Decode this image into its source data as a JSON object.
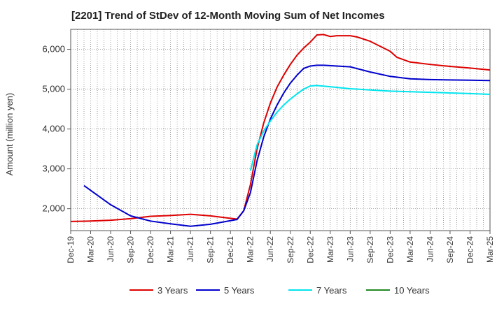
{
  "chart_data": {
    "type": "line",
    "title": "[2201]  Trend of StDev of 12-Month Moving Sum of Net Incomes",
    "xlabel": "",
    "ylabel": "Amount (million yen)",
    "ylim": [
      1450,
      6500
    ],
    "yticks": [
      2000,
      3000,
      4000,
      5000,
      6000
    ],
    "ytick_labels": [
      "2,000",
      "3,000",
      "4,000",
      "5,000",
      "6,000"
    ],
    "x_start": "2019-12",
    "x_end": "2025-03",
    "xtick_labels": [
      "Dec-19",
      "Mar-20",
      "Jun-20",
      "Sep-20",
      "Dec-20",
      "Mar-21",
      "Jun-21",
      "Sep-21",
      "Dec-21",
      "Mar-22",
      "Jun-22",
      "Sep-22",
      "Dec-22",
      "Mar-23",
      "Jun-23",
      "Sep-23",
      "Dec-23",
      "Mar-24",
      "Jun-24",
      "Sep-24",
      "Dec-24",
      "Mar-25"
    ],
    "grid": true,
    "legend_position": "bottom",
    "series": [
      {
        "name": "3 Years",
        "color": "#dd0000",
        "points": [
          [
            "2019-12",
            1680
          ],
          [
            "2020-03",
            1690
          ],
          [
            "2020-06",
            1710
          ],
          [
            "2020-09",
            1750
          ],
          [
            "2020-12",
            1810
          ],
          [
            "2021-03",
            1830
          ],
          [
            "2021-06",
            1860
          ],
          [
            "2021-09",
            1820
          ],
          [
            "2021-12",
            1760
          ],
          [
            "2022-01",
            1740
          ],
          [
            "2022-02",
            1950
          ],
          [
            "2022-03",
            2600
          ],
          [
            "2022-04",
            3500
          ],
          [
            "2022-05",
            4150
          ],
          [
            "2022-06",
            4650
          ],
          [
            "2022-07",
            5050
          ],
          [
            "2022-08",
            5350
          ],
          [
            "2022-09",
            5620
          ],
          [
            "2022-10",
            5850
          ],
          [
            "2022-11",
            6030
          ],
          [
            "2022-12",
            6180
          ],
          [
            "2023-01",
            6360
          ],
          [
            "2023-02",
            6370
          ],
          [
            "2023-03",
            6320
          ],
          [
            "2023-04",
            6340
          ],
          [
            "2023-06",
            6340
          ],
          [
            "2023-07",
            6310
          ],
          [
            "2023-09",
            6200
          ],
          [
            "2023-12",
            5950
          ],
          [
            "2024-01",
            5800
          ],
          [
            "2024-03",
            5680
          ],
          [
            "2024-06",
            5620
          ],
          [
            "2024-09",
            5570
          ],
          [
            "2024-12",
            5530
          ],
          [
            "2025-03",
            5480
          ]
        ]
      },
      {
        "name": "5 Years",
        "color": "#0000cc",
        "points": [
          [
            "2020-02",
            2580
          ],
          [
            "2020-06",
            2100
          ],
          [
            "2020-09",
            1820
          ],
          [
            "2020-12",
            1690
          ],
          [
            "2021-03",
            1620
          ],
          [
            "2021-06",
            1560
          ],
          [
            "2021-09",
            1610
          ],
          [
            "2021-12",
            1700
          ],
          [
            "2022-01",
            1730
          ],
          [
            "2022-02",
            1950
          ],
          [
            "2022-03",
            2400
          ],
          [
            "2022-04",
            3200
          ],
          [
            "2022-05",
            3800
          ],
          [
            "2022-06",
            4250
          ],
          [
            "2022-07",
            4600
          ],
          [
            "2022-08",
            4900
          ],
          [
            "2022-09",
            5150
          ],
          [
            "2022-10",
            5350
          ],
          [
            "2022-11",
            5520
          ],
          [
            "2022-12",
            5580
          ],
          [
            "2023-01",
            5600
          ],
          [
            "2023-02",
            5600
          ],
          [
            "2023-04",
            5580
          ],
          [
            "2023-06",
            5560
          ],
          [
            "2023-09",
            5430
          ],
          [
            "2023-12",
            5320
          ],
          [
            "2024-03",
            5260
          ],
          [
            "2024-06",
            5240
          ],
          [
            "2024-09",
            5230
          ],
          [
            "2024-12",
            5225
          ],
          [
            "2025-03",
            5215
          ]
        ]
      },
      {
        "name": "7 Years",
        "color": "#00e5ee",
        "points": [
          [
            "2022-03",
            2950
          ],
          [
            "2022-04",
            3600
          ],
          [
            "2022-05",
            3950
          ],
          [
            "2022-06",
            4200
          ],
          [
            "2022-07",
            4420
          ],
          [
            "2022-08",
            4600
          ],
          [
            "2022-09",
            4750
          ],
          [
            "2022-10",
            4880
          ],
          [
            "2022-11",
            5000
          ],
          [
            "2022-12",
            5080
          ],
          [
            "2023-01",
            5090
          ],
          [
            "2023-03",
            5060
          ],
          [
            "2023-06",
            5010
          ],
          [
            "2023-09",
            4980
          ],
          [
            "2023-12",
            4950
          ],
          [
            "2024-03",
            4935
          ],
          [
            "2024-06",
            4920
          ],
          [
            "2024-09",
            4905
          ],
          [
            "2024-12",
            4890
          ],
          [
            "2025-03",
            4870
          ]
        ]
      },
      {
        "name": "10 Years",
        "color": "#228822",
        "points": []
      }
    ]
  }
}
